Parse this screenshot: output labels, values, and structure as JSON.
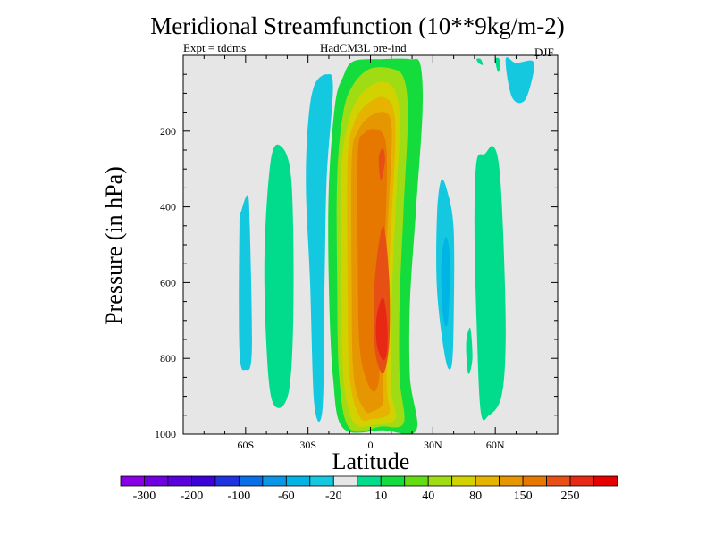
{
  "chart_data": {
    "type": "contour",
    "title": "Meridional Streamfunction (10**9kg/m-2)",
    "subtitle_left": "Expt = tddms",
    "subtitle_center": "HadCM3L pre-ind",
    "subtitle_right": "DJF",
    "xlabel": "Latitude",
    "ylabel": "Pressure (in hPa)",
    "xlim": [
      -90,
      90
    ],
    "ylim": [
      1000,
      0
    ],
    "x_ticks": [
      {
        "value": -60,
        "label": "60S"
      },
      {
        "value": -30,
        "label": "30S"
      },
      {
        "value": 0,
        "label": "0"
      },
      {
        "value": 30,
        "label": "30N"
      },
      {
        "value": 60,
        "label": "60N"
      }
    ],
    "y_ticks": [
      {
        "value": 200,
        "label": "200"
      },
      {
        "value": 400,
        "label": "400"
      },
      {
        "value": 600,
        "label": "600"
      },
      {
        "value": 800,
        "label": "800"
      },
      {
        "value": 1000,
        "label": "1000"
      }
    ],
    "background_color": "#e6e6e6",
    "colorbar": {
      "colors": [
        "#8a00e6",
        "#7000e0",
        "#5a00dc",
        "#3c00d8",
        "#1e32e0",
        "#0a6ee6",
        "#0a96e6",
        "#00b4e6",
        "#14c8e0",
        "#e6e6e6",
        "#00dc8c",
        "#14dc3c",
        "#64dc14",
        "#a0dc14",
        "#d2d200",
        "#e6b400",
        "#e69600",
        "#e67800",
        "#e65014",
        "#e62814",
        "#e60000"
      ],
      "labels": [
        "-300",
        "-200",
        "-100",
        "-60",
        "-20",
        "10",
        "40",
        "80",
        "150",
        "250"
      ]
    },
    "features": [
      {
        "name": "main-cell-level-1",
        "level": 40,
        "color": "#14dc3c",
        "points": [
          [
            -13,
            985
          ],
          [
            -18,
            850
          ],
          [
            -20,
            600
          ],
          [
            -20,
            350
          ],
          [
            -17,
            130
          ],
          [
            -13,
            55
          ],
          [
            -8,
            15
          ],
          [
            5,
            10
          ],
          [
            19,
            10
          ],
          [
            24,
            25
          ],
          [
            25,
            150
          ],
          [
            22,
            400
          ],
          [
            19,
            650
          ],
          [
            19,
            850
          ],
          [
            22,
            990
          ],
          [
            6,
            990
          ]
        ]
      },
      {
        "name": "main-cell-level-2",
        "level": 80,
        "color": "#a0dc14",
        "points": [
          [
            -10,
            985
          ],
          [
            -15,
            850
          ],
          [
            -16,
            600
          ],
          [
            -16,
            320
          ],
          [
            -13,
            150
          ],
          [
            -8,
            75
          ],
          [
            0,
            35
          ],
          [
            10,
            35
          ],
          [
            16,
            60
          ],
          [
            18,
            160
          ],
          [
            16,
            400
          ],
          [
            14,
            650
          ],
          [
            14,
            850
          ],
          [
            16,
            970
          ],
          [
            5,
            980
          ]
        ]
      },
      {
        "name": "main-cell-level-3",
        "level": 100,
        "color": "#d2d200",
        "points": [
          [
            -8,
            970
          ],
          [
            -13,
            850
          ],
          [
            -14,
            600
          ],
          [
            -14,
            300
          ],
          [
            -10,
            165
          ],
          [
            -4,
            100
          ],
          [
            5,
            70
          ],
          [
            12,
            95
          ],
          [
            14,
            190
          ],
          [
            12,
            420
          ],
          [
            10,
            680
          ],
          [
            10,
            880
          ],
          [
            12,
            960
          ],
          [
            2,
            975
          ]
        ]
      },
      {
        "name": "main-cell-level-4",
        "level": 150,
        "color": "#e6b400",
        "points": [
          [
            -5,
            955
          ],
          [
            -10,
            850
          ],
          [
            -11,
            600
          ],
          [
            -11,
            280
          ],
          [
            -8,
            180
          ],
          [
            -2,
            130
          ],
          [
            6,
            110
          ],
          [
            11,
            140
          ],
          [
            12,
            230
          ],
          [
            10,
            450
          ],
          [
            8,
            700
          ],
          [
            8,
            880
          ],
          [
            9,
            945
          ],
          [
            1,
            960
          ]
        ]
      },
      {
        "name": "main-cell-level-5",
        "level": 200,
        "color": "#e69600",
        "points": [
          [
            -3,
            935
          ],
          [
            -8,
            850
          ],
          [
            -9,
            620
          ],
          [
            -9,
            280
          ],
          [
            -6,
            200
          ],
          [
            0,
            160
          ],
          [
            7,
            150
          ],
          [
            10,
            180
          ],
          [
            10,
            270
          ],
          [
            8,
            480
          ],
          [
            6,
            720
          ],
          [
            6,
            870
          ],
          [
            6,
            920
          ],
          [
            1,
            940
          ]
        ]
      },
      {
        "name": "main-cell-level-6",
        "level": 250,
        "color": "#e67800",
        "points": [
          [
            0,
            880
          ],
          [
            -5,
            780
          ],
          [
            -6,
            560
          ],
          [
            -6,
            260
          ],
          [
            -3,
            205
          ],
          [
            3,
            195
          ],
          [
            7,
            220
          ],
          [
            8,
            300
          ],
          [
            7,
            480
          ],
          [
            5,
            700
          ],
          [
            4,
            860
          ]
        ]
      },
      {
        "name": "main-cell-core",
        "level": 300,
        "color": "#e65014",
        "points": [
          [
            6,
            840
          ],
          [
            2,
            770
          ],
          [
            2,
            600
          ],
          [
            6,
            450
          ],
          [
            9,
            590
          ],
          [
            9,
            760
          ]
        ]
      },
      {
        "name": "upper-core-streak",
        "level": 300,
        "color": "#e65014",
        "points": [
          [
            5,
            330
          ],
          [
            4,
            270
          ],
          [
            6,
            245
          ],
          [
            7,
            280
          ]
        ]
      },
      {
        "name": "lower-core-patch",
        "level": 350,
        "color": "#e62814",
        "points": [
          [
            6,
            805
          ],
          [
            3,
            760
          ],
          [
            3,
            690
          ],
          [
            6,
            640
          ],
          [
            8,
            700
          ],
          [
            8,
            780
          ]
        ]
      },
      {
        "name": "south-negative-cell",
        "level": -20,
        "color": "#14c8e0",
        "points": [
          [
            -27,
            80
          ],
          [
            -21,
            50
          ],
          [
            -18,
            85
          ],
          [
            -21,
            320
          ],
          [
            -22,
            580
          ],
          [
            -23,
            930
          ],
          [
            -27,
            920
          ],
          [
            -29,
            600
          ],
          [
            -31,
            350
          ],
          [
            -30,
            180
          ]
        ]
      },
      {
        "name": "southern-positive-cell",
        "level": 10,
        "color": "#00dc8c",
        "points": [
          [
            -48,
            280
          ],
          [
            -43,
            240
          ],
          [
            -38,
            330
          ],
          [
            -37,
            650
          ],
          [
            -39,
            880
          ],
          [
            -45,
            930
          ],
          [
            -49,
            850
          ],
          [
            -51,
            550
          ]
        ]
      },
      {
        "name": "far-south-negative-cell",
        "level": -20,
        "color": "#14c8e0",
        "points": [
          [
            -62,
            410
          ],
          [
            -59,
            370
          ],
          [
            -58,
            450
          ],
          [
            -57,
            780
          ],
          [
            -60,
            830
          ],
          [
            -63,
            780
          ],
          [
            -63,
            450
          ]
        ]
      },
      {
        "name": "northern-negative-cell",
        "level": -20,
        "color": "#14c8e0",
        "points": [
          [
            37,
            360
          ],
          [
            34,
            330
          ],
          [
            32,
            420
          ],
          [
            32,
            620
          ],
          [
            36,
            800
          ],
          [
            39,
            820
          ],
          [
            40,
            700
          ],
          [
            40,
            460
          ]
        ]
      },
      {
        "name": "northern-negative-core",
        "level": -60,
        "color": "#00b4e6",
        "points": [
          [
            38,
            520
          ],
          [
            36,
            480
          ],
          [
            34,
            560
          ],
          [
            35,
            690
          ],
          [
            37,
            710
          ],
          [
            38,
            620
          ]
        ]
      },
      {
        "name": "northern-positive-cell",
        "level": 10,
        "color": "#00dc8c",
        "points": [
          [
            55,
            260
          ],
          [
            51,
            280
          ],
          [
            50,
            450
          ],
          [
            51,
            700
          ],
          [
            53,
            940
          ],
          [
            57,
            950
          ],
          [
            63,
            900
          ],
          [
            65,
            750
          ],
          [
            64,
            500
          ],
          [
            62,
            300
          ],
          [
            59,
            240
          ]
        ]
      },
      {
        "name": "northern-positive-tail",
        "level": 10,
        "color": "#00dc8c",
        "points": [
          [
            47,
            840
          ],
          [
            46,
            760
          ],
          [
            48,
            720
          ],
          [
            49,
            800
          ]
        ]
      },
      {
        "name": "arctic-negative-cell",
        "level": -20,
        "color": "#14c8e0",
        "points": [
          [
            70,
            20
          ],
          [
            65,
            10
          ],
          [
            68,
            110
          ],
          [
            74,
            120
          ],
          [
            78,
            55
          ],
          [
            78,
            15
          ]
        ]
      },
      {
        "name": "arctic-positive-patch",
        "level": 10,
        "color": "#00dc8c",
        "points": [
          [
            52,
            20
          ],
          [
            51,
            10
          ],
          [
            53,
            10
          ],
          [
            54,
            25
          ]
        ]
      },
      {
        "name": "arctic-positive-patch-2",
        "level": 10,
        "color": "#00dc8c",
        "points": [
          [
            61,
            40
          ],
          [
            60,
            10
          ],
          [
            62,
            10
          ],
          [
            62,
            40
          ]
        ]
      },
      {
        "name": "south-negative-upper-tail",
        "level": -20,
        "color": "#14c8e0",
        "points": [
          [
            -24,
            300
          ],
          [
            -23,
            240
          ],
          [
            -22,
            290
          ]
        ]
      }
    ]
  }
}
